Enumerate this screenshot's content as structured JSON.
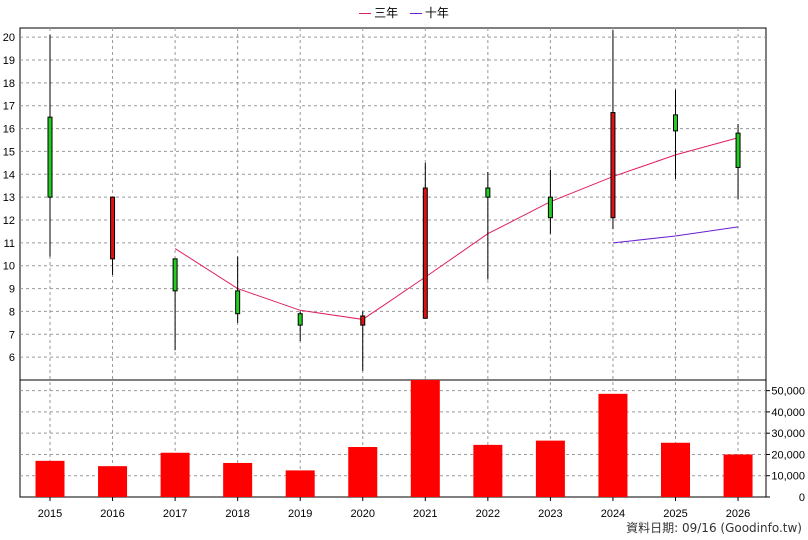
{
  "legend": [
    {
      "label": "三年",
      "color": "#e0205f"
    },
    {
      "label": "十年",
      "color": "#6a1fd0"
    }
  ],
  "footer": "資料日期: 09/16 (Goodinfo.tw)",
  "chart_data": [
    {
      "type": "candlestick",
      "categories": [
        "2015",
        "2016",
        "2017",
        "2018",
        "2019",
        "2020",
        "2021",
        "2022",
        "2023",
        "2024",
        "2025",
        "2026"
      ],
      "ylim": [
        5,
        20.4
      ],
      "yticks": [
        6,
        7,
        8,
        9,
        10,
        11,
        12,
        13,
        14,
        15,
        16,
        17,
        18,
        19,
        20
      ],
      "grid": true,
      "up_color": "#22cc22",
      "down_color": "#dd1111",
      "candles": [
        {
          "open": 13.0,
          "close": 16.5,
          "high": 20.1,
          "low": 10.4
        },
        {
          "open": 13.0,
          "close": 10.3,
          "high": 13.0,
          "low": 9.6
        },
        {
          "open": 8.9,
          "close": 10.3,
          "high": 10.3,
          "low": 6.3
        },
        {
          "open": 7.9,
          "close": 8.9,
          "high": 10.4,
          "low": 7.5
        },
        {
          "open": 7.4,
          "close": 7.9,
          "high": 8.0,
          "low": 6.7
        },
        {
          "open": 7.8,
          "close": 7.4,
          "high": 8.0,
          "low": 5.4
        },
        {
          "open": 13.4,
          "close": 7.7,
          "high": 14.5,
          "low": 7.7
        },
        {
          "open": 13.0,
          "close": 13.4,
          "high": 14.1,
          "low": 9.4
        },
        {
          "open": 12.1,
          "close": 13.0,
          "high": 14.2,
          "low": 11.4
        },
        {
          "open": 16.7,
          "close": 12.1,
          "high": 20.3,
          "low": 11.6
        },
        {
          "open": 15.9,
          "close": 16.6,
          "high": 17.7,
          "low": 13.8
        },
        {
          "open": 14.3,
          "close": 15.8,
          "high": 16.2,
          "low": 12.9
        }
      ],
      "series": [
        {
          "name": "三年",
          "color": "#e0205f",
          "values": [
            null,
            null,
            10.75,
            9.0,
            8.05,
            7.65,
            9.5,
            11.4,
            12.8,
            13.9,
            14.85,
            15.6
          ]
        },
        {
          "name": "十年",
          "color": "#6a1fd0",
          "values": [
            null,
            null,
            null,
            null,
            null,
            null,
            null,
            null,
            null,
            11.0,
            11.3,
            11.7
          ]
        }
      ]
    },
    {
      "type": "bar",
      "categories": [
        "2015",
        "2016",
        "2017",
        "2018",
        "2019",
        "2020",
        "2021",
        "2022",
        "2023",
        "2024",
        "2025",
        "2026"
      ],
      "values": [
        17000,
        14500,
        20800,
        16000,
        12500,
        23500,
        55000,
        24500,
        26500,
        48500,
        25500,
        20000
      ],
      "color": "#ff0000",
      "ylim": [
        0,
        55000
      ],
      "yticks": [
        0,
        10000,
        20000,
        30000,
        40000,
        50000
      ],
      "ytick_labels": [
        "0",
        "10,000",
        "20,000",
        "30,000",
        "40,000",
        "50,000"
      ],
      "grid": true
    }
  ]
}
